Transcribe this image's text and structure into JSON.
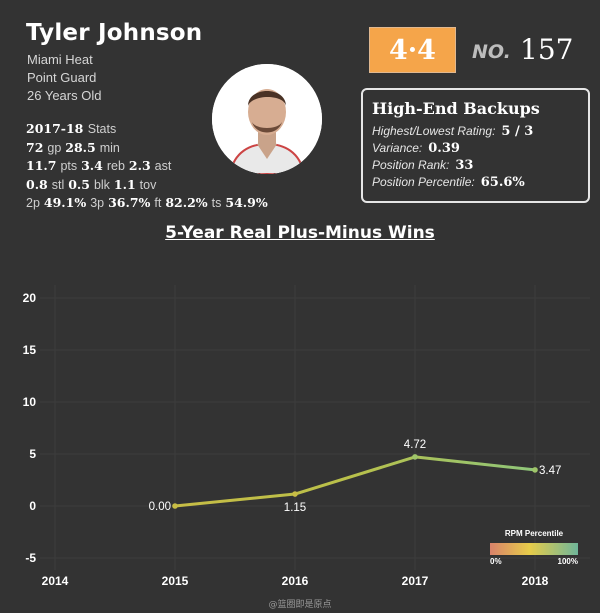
{
  "player": {
    "name": "Tyler Johnson",
    "team": "Miami Heat",
    "position": "Point Guard",
    "age": "26 Years Old"
  },
  "stats": {
    "season": "2017-18",
    "season_label": "Stats",
    "gp": "72",
    "gp_label": "gp",
    "min": "28.5",
    "min_label": "min",
    "pts": "11.7",
    "pts_label": "pts",
    "reb": "3.4",
    "reb_label": "reb",
    "ast": "2.3",
    "ast_label": "ast",
    "stl": "0.8",
    "stl_label": "stl",
    "blk": "0.5",
    "blk_label": "blk",
    "tov": "1.1",
    "tov_label": "tov",
    "p2": "49.1%",
    "p2_label": "2p",
    "p3": "36.7%",
    "p3_label": "3p",
    "ft": "82.2%",
    "ft_label": "ft",
    "ts": "54.9%",
    "ts_label": "ts"
  },
  "rating": {
    "score": "4·4",
    "no_label": "NO.",
    "number": "157"
  },
  "tier": {
    "title": "High-End Backups",
    "rows": [
      {
        "label": "Highest/Lowest Rating:",
        "value": "5 / 3"
      },
      {
        "label": "Variance:",
        "value": "0.39"
      },
      {
        "label": "Position Rank:",
        "value": "33"
      },
      {
        "label": "Position Percentile:",
        "value": "65.6%"
      }
    ]
  },
  "colors": {
    "background": "#333333",
    "rating_box": "#f5a54a",
    "line_low": "#c8bd45",
    "line_high": "#8fc67a",
    "grid": "#3d3d3d"
  },
  "chart_data": {
    "type": "line",
    "title": "5-Year Real Plus-Minus Wins",
    "x": [
      2015,
      2016,
      2017,
      2018
    ],
    "values": [
      0.0,
      1.15,
      4.72,
      3.47
    ],
    "point_labels": [
      "0.00",
      "1.15",
      "4.72",
      "3.47"
    ],
    "percentiles": [
      0.45,
      0.5,
      0.72,
      0.62
    ],
    "xticks": [
      "2014",
      "2015",
      "2016",
      "2017",
      "2018"
    ],
    "yticks": [
      "20",
      "15",
      "10",
      "5",
      "0",
      "-5"
    ],
    "xlim": [
      2014,
      2018
    ],
    "ylim": [
      -5,
      20
    ],
    "xlabel": "",
    "ylabel": "",
    "legend": {
      "title": "RPM Percentile",
      "min_label": "0%",
      "max_label": "100%",
      "placement": "bottom-right"
    }
  },
  "watermark": "@篮圈即是原点"
}
